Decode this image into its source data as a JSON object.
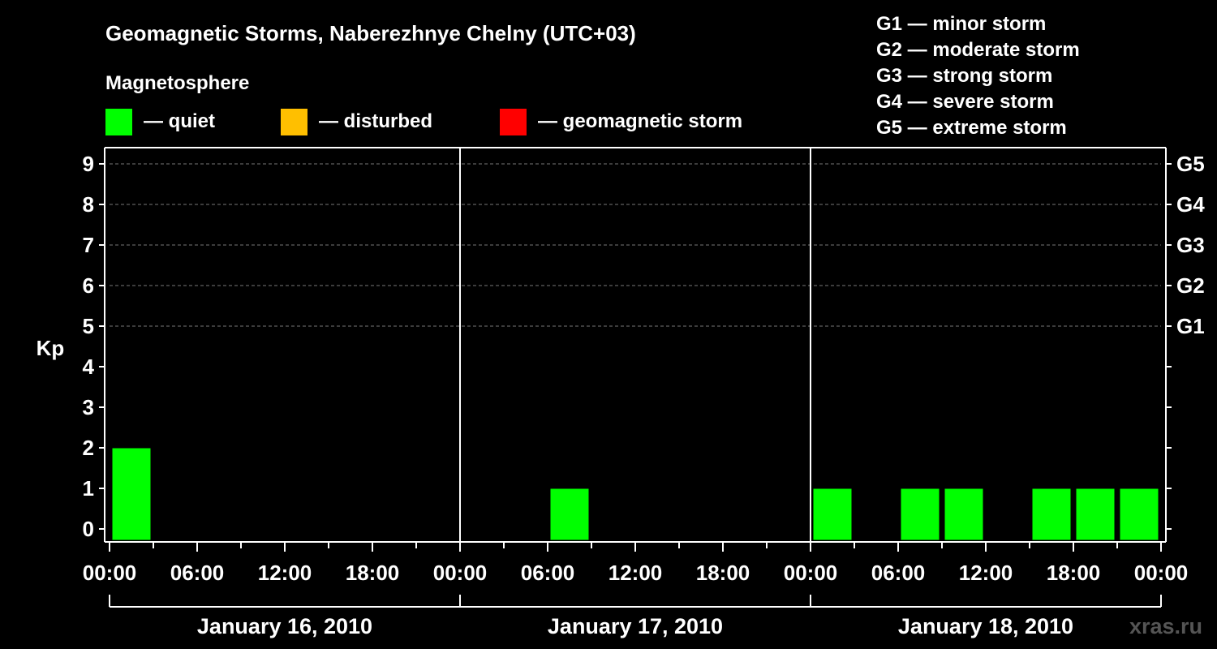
{
  "chart_data": {
    "type": "bar",
    "title": "Geomagnetic Storms, Naberezhnye Chelny (UTC+03)",
    "ylabel": "Kp",
    "ylim": [
      0,
      9
    ],
    "yticks": [
      "0",
      "1",
      "2",
      "3",
      "4",
      "5",
      "6",
      "7",
      "8",
      "9"
    ],
    "storm_scale_ticks": [
      {
        "kp": 5,
        "label": "G1"
      },
      {
        "kp": 6,
        "label": "G2"
      },
      {
        "kp": 7,
        "label": "G3"
      },
      {
        "kp": 8,
        "label": "G4"
      },
      {
        "kp": 9,
        "label": "G5"
      }
    ],
    "xticks": [
      "00:00",
      "06:00",
      "12:00",
      "18:00",
      "00:00",
      "06:00",
      "12:00",
      "18:00",
      "00:00",
      "06:00",
      "12:00",
      "18:00",
      "00:00"
    ],
    "days": [
      "January 16, 2010",
      "January 17, 2010",
      "January 18, 2010"
    ],
    "legend_title": "Magnetosphere",
    "legend": [
      {
        "label": "— quiet",
        "color": "#00ff00"
      },
      {
        "label": "— disturbed",
        "color": "#ffbf00"
      },
      {
        "label": "— geomagnetic storm",
        "color": "#ff0000"
      }
    ],
    "scale_legend": [
      "G1 — minor storm",
      "G2 — moderate storm",
      "G3 — strong storm",
      "G4 — severe storm",
      "G5 — extreme storm"
    ],
    "bar_color": "#00ff00",
    "bars_note": "3-hour intervals from 00:00 Jan 16 (index 0) to Jan 18 end (index 23)",
    "bars": [
      {
        "interval": 0,
        "value": 2
      },
      {
        "interval": 10,
        "value": 1
      },
      {
        "interval": 16,
        "value": 1
      },
      {
        "interval": 18,
        "value": 1
      },
      {
        "interval": 19,
        "value": 1
      },
      {
        "interval": 21,
        "value": 1
      },
      {
        "interval": 22,
        "value": 1
      },
      {
        "interval": 23,
        "value": 1
      }
    ],
    "watermark": "xras.ru"
  }
}
